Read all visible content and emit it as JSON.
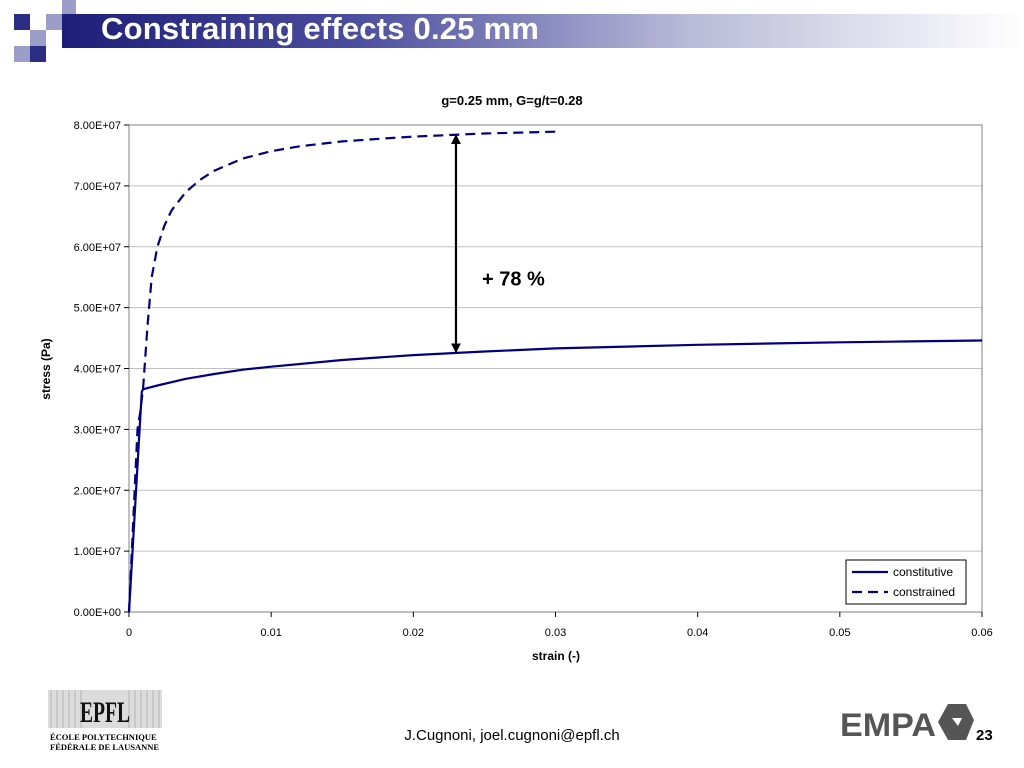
{
  "slide": {
    "title": "Constraining effects 0.25 mm",
    "footer": "J.Cugnoni, joel.cugnoni@epfl.ch",
    "page_number": "23",
    "logos": {
      "epfl_mark": "EPFL",
      "epfl_line1": "ÉCOLE POLYTECHNIQUE",
      "epfl_line2": "FÉDÉRALE DE LAUSANNE",
      "empa": "EMPA"
    },
    "colors": {
      "title_bar": "#1d1e78",
      "squares": "#2b2c84",
      "squares_light": "#9c9dc9"
    }
  },
  "chart_data": {
    "type": "line",
    "title": "g=0.25 mm, G=g/t=0.28",
    "xlabel": "strain (-)",
    "ylabel": "stress (Pa)",
    "xlim": [
      0,
      0.06
    ],
    "ylim": [
      0,
      80000000
    ],
    "x_ticks": [
      "0",
      "0.01",
      "0.02",
      "0.03",
      "0.04",
      "0.05",
      "0.06"
    ],
    "y_ticks": [
      "0.00E+00",
      "1.00E+07",
      "2.00E+07",
      "3.00E+07",
      "4.00E+07",
      "5.00E+07",
      "6.00E+07",
      "7.00E+07",
      "8.00E+07"
    ],
    "grid": "horizontal",
    "legend": "bottom-right",
    "series": [
      {
        "name": "constitutive",
        "style": "solid",
        "color": "#000080",
        "x": [
          0,
          0.0009,
          0.001,
          0.002,
          0.004,
          0.006,
          0.008,
          0.01,
          0.015,
          0.02,
          0.025,
          0.03,
          0.035,
          0.04,
          0.045,
          0.05,
          0.055,
          0.06
        ],
        "y": [
          0,
          36200000,
          36600000,
          37200000,
          38300000,
          39100000,
          39800000,
          40300000,
          41400000,
          42200000,
          42800000,
          43300000,
          43600000,
          43900000,
          44100000,
          44300000,
          44450000,
          44600000
        ]
      },
      {
        "name": "constrained",
        "style": "dashed",
        "color": "#000080",
        "x": [
          0,
          0.0006,
          0.0008,
          0.001,
          0.0013,
          0.0016,
          0.002,
          0.0025,
          0.003,
          0.004,
          0.005,
          0.006,
          0.008,
          0.01,
          0.012,
          0.015,
          0.018,
          0.02,
          0.025,
          0.03
        ],
        "y": [
          0,
          30000000,
          33000000,
          37000000,
          47000000,
          55000000,
          60000000,
          63500000,
          66000000,
          69000000,
          71000000,
          72500000,
          74500000,
          75700000,
          76500000,
          77300000,
          77800000,
          78100000,
          78600000,
          78900000
        ]
      }
    ],
    "annotations": [
      {
        "text": "+ 78 %",
        "arrow_x": 0.023,
        "arrow_y": [
          42500000,
          78500000
        ]
      }
    ]
  }
}
